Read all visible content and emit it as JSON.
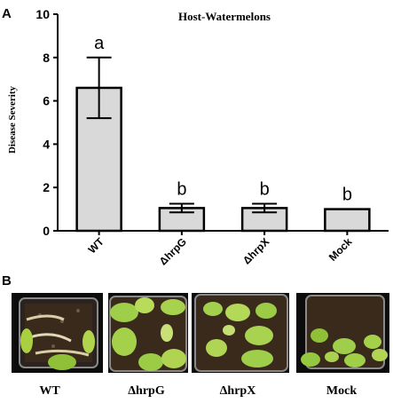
{
  "figure": {
    "panel_a_label": "A",
    "panel_b_label": "B"
  },
  "chart_data": {
    "type": "bar",
    "title": "Host-Watermelons",
    "ylabel": "Disease Severity",
    "xlabel": "",
    "ylim": [
      0,
      10
    ],
    "yticks": [
      "0",
      "2",
      "4",
      "6",
      "8",
      "10"
    ],
    "categories": [
      "WT",
      "ΔhrpG",
      "ΔhrpX",
      "Mock"
    ],
    "values": [
      6.6,
      1.05,
      1.05,
      1.0
    ],
    "errors": [
      1.4,
      0.2,
      0.2,
      0.0
    ],
    "significance": [
      "a",
      "b",
      "b",
      "b"
    ],
    "bar_color": "#d9d9d9",
    "edge_color": "#000000"
  },
  "photos": {
    "captions": [
      "WT",
      "ΔhrpG",
      "ΔhrpX",
      "Mock"
    ],
    "soil_color": "#3a2a1c",
    "leaf_color": "#9fcf4a",
    "background_color": "#0c0c0c"
  }
}
